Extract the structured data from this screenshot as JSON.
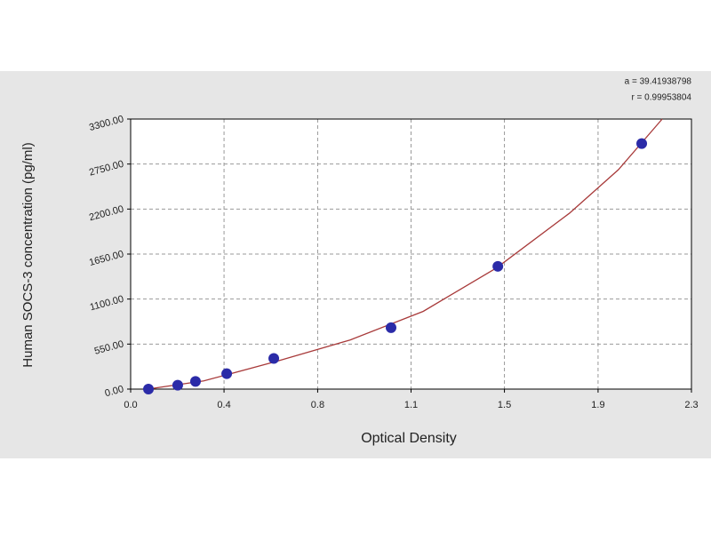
{
  "chart_data": {
    "type": "scatter",
    "x_label": "Optical Density",
    "y_label": "Human SOCS-3 concentration (pg/ml)",
    "annotations": [
      "a = 39.41938798",
      "r = 0.99953804"
    ],
    "x": [
      0.073,
      0.193,
      0.266,
      0.394,
      0.587,
      1.068,
      1.506,
      2.096
    ],
    "values": [
      0,
      47,
      94,
      188,
      375,
      750,
      1500,
      3000
    ],
    "color": "#2b2ba8",
    "fit": {
      "x": [
        0.07,
        0.3,
        0.6,
        0.9,
        1.2,
        1.5,
        1.8,
        2.0,
        2.18
      ],
      "values": [
        0,
        100,
        340,
        600,
        950,
        1480,
        2150,
        2680,
        3300
      ],
      "color": "#a83a3a"
    },
    "xlim": [
      0,
      2.3
    ],
    "xticks": [
      {
        "value": 0,
        "label": "0.0"
      },
      {
        "value": 0.383,
        "label": "0.4"
      },
      {
        "value": 0.767,
        "label": "0.8"
      },
      {
        "value": 1.15,
        "label": "1.1"
      },
      {
        "value": 1.533,
        "label": "1.5"
      },
      {
        "value": 1.917,
        "label": "1.9"
      },
      {
        "value": 2.3,
        "label": "2.3"
      }
    ],
    "ylim": [
      0,
      3300
    ],
    "yticks": [
      {
        "value": 0,
        "label": "0.00"
      },
      {
        "value": 550,
        "label": "550.00"
      },
      {
        "value": 1100,
        "label": "1100.00"
      },
      {
        "value": 1650,
        "label": "1650.00"
      },
      {
        "value": 2200,
        "label": "2200.00"
      },
      {
        "value": 2750,
        "label": "2750.00"
      },
      {
        "value": 3300,
        "label": "3300.00"
      }
    ],
    "grid": true
  }
}
